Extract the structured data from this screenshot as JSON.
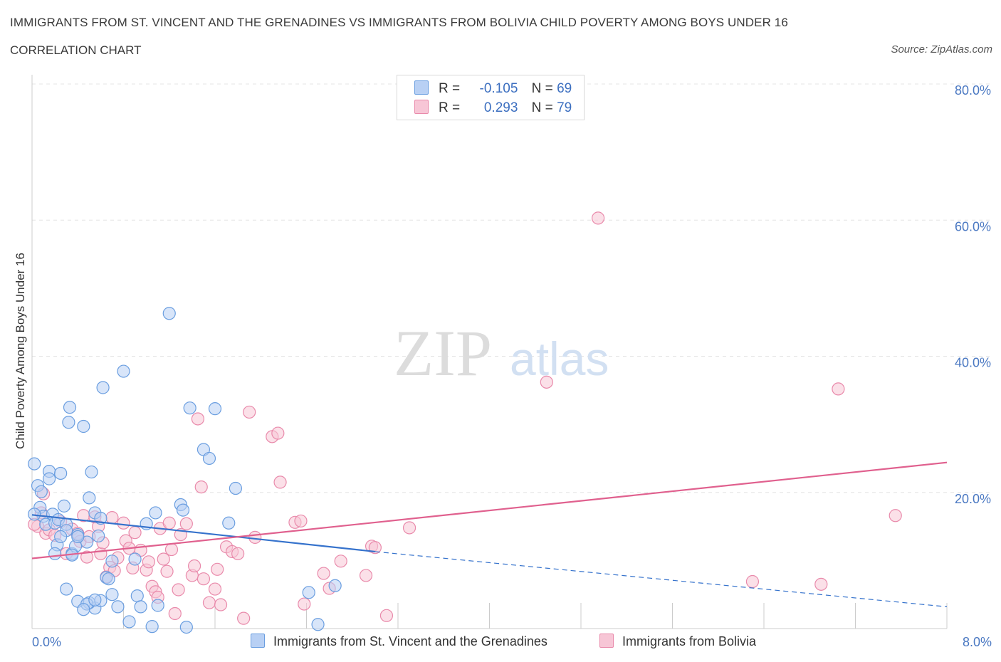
{
  "header": {
    "title": "IMMIGRANTS FROM ST. VINCENT AND THE GRENADINES VS IMMIGRANTS FROM BOLIVIA CHILD POVERTY AMONG BOYS UNDER 16",
    "subtitle": "CORRELATION CHART",
    "source": "Source: ZipAtlas.com"
  },
  "legend": {
    "rows": [
      {
        "r_label": "R =",
        "r_value": "-0.105",
        "n_label": "N =",
        "n_value": "69"
      },
      {
        "r_label": "R =",
        "r_value": "0.293",
        "n_label": "N =",
        "n_value": "79"
      }
    ]
  },
  "colors": {
    "blue_fill": "#b8d0f4",
    "blue_stroke": "#6a9ee0",
    "blue_line": "#3572cc",
    "pink_fill": "#f7c6d6",
    "pink_stroke": "#e98aab",
    "pink_line": "#e0608e",
    "accent_text": "#4a78c2"
  },
  "watermark": {
    "zip": "ZIP",
    "atlas": "atlas"
  },
  "chart_data": {
    "type": "scatter",
    "xlabel": "",
    "ylabel": "Child Poverty Among Boys Under 16",
    "xlim": [
      0,
      8
    ],
    "ylim": [
      0,
      80
    ],
    "x_tick_labels": [
      "0.0%",
      "8.0%"
    ],
    "y_ticks": [
      20,
      40,
      60,
      80
    ],
    "y_tick_labels": [
      "20.0%",
      "40.0%",
      "60.0%",
      "80.0%"
    ],
    "grid": true,
    "series": [
      {
        "name": "Immigrants from St. Vincent and the Grenadines",
        "color": "blue",
        "trend": {
          "x": [
            0.0,
            3.0
          ],
          "y": [
            16.7,
            11.3
          ]
        },
        "trend_extension": {
          "x": [
            3.0,
            8.0
          ],
          "y": [
            11.3,
            3.2
          ]
        },
        "points": [
          [
            0.02,
            24.2
          ],
          [
            0.05,
            21.0
          ],
          [
            0.07,
            17.8
          ],
          [
            0.08,
            20.1
          ],
          [
            0.1,
            16.5
          ],
          [
            0.12,
            15.3
          ],
          [
            0.15,
            23.1
          ],
          [
            0.15,
            22.0
          ],
          [
            0.18,
            16.8
          ],
          [
            0.2,
            15.5
          ],
          [
            0.22,
            12.3
          ],
          [
            0.23,
            16.0
          ],
          [
            0.25,
            22.8
          ],
          [
            0.28,
            18.0
          ],
          [
            0.3,
            15.3
          ],
          [
            0.33,
            32.5
          ],
          [
            0.32,
            30.3
          ],
          [
            0.35,
            11.0
          ],
          [
            0.38,
            12.1
          ],
          [
            0.4,
            13.8
          ],
          [
            0.45,
            29.7
          ],
          [
            0.48,
            12.7
          ],
          [
            0.5,
            19.2
          ],
          [
            0.52,
            23.0
          ],
          [
            0.55,
            17.0
          ],
          [
            0.58,
            13.6
          ],
          [
            0.6,
            16.2
          ],
          [
            0.62,
            35.4
          ],
          [
            0.65,
            7.5
          ],
          [
            0.67,
            7.3
          ],
          [
            0.7,
            9.9
          ],
          [
            0.75,
            3.2
          ],
          [
            0.8,
            37.8
          ],
          [
            0.85,
            1.0
          ],
          [
            0.9,
            10.2
          ],
          [
            0.92,
            4.8
          ],
          [
            0.95,
            3.2
          ],
          [
            1.0,
            15.4
          ],
          [
            1.05,
            0.3
          ],
          [
            1.08,
            17.0
          ],
          [
            1.1,
            3.4
          ],
          [
            1.2,
            46.3
          ],
          [
            1.3,
            18.2
          ],
          [
            1.32,
            17.4
          ],
          [
            1.35,
            0.2
          ],
          [
            1.38,
            32.4
          ],
          [
            1.5,
            26.3
          ],
          [
            1.55,
            25.0
          ],
          [
            1.6,
            32.3
          ],
          [
            1.72,
            15.5
          ],
          [
            1.78,
            20.6
          ],
          [
            2.42,
            5.3
          ],
          [
            2.5,
            0.6
          ],
          [
            2.65,
            6.3
          ],
          [
            0.4,
            4.0
          ],
          [
            0.55,
            3.0
          ],
          [
            0.5,
            3.8
          ],
          [
            0.48,
            3.6
          ],
          [
            0.3,
            5.8
          ],
          [
            0.45,
            2.8
          ],
          [
            0.6,
            4.1
          ],
          [
            0.55,
            4.2
          ],
          [
            0.7,
            5.0
          ],
          [
            0.2,
            11.0
          ],
          [
            0.3,
            14.4
          ],
          [
            0.4,
            13.5
          ],
          [
            0.25,
            13.5
          ],
          [
            0.35,
            10.8
          ],
          [
            0.02,
            16.8
          ]
        ]
      },
      {
        "name": "Immigrants from Bolivia",
        "color": "pink",
        "trend": {
          "x": [
            0.0,
            8.0
          ],
          "y": [
            10.3,
            24.4
          ]
        },
        "points": [
          [
            0.05,
            15.0
          ],
          [
            0.08,
            17.0
          ],
          [
            0.1,
            19.8
          ],
          [
            0.12,
            14.0
          ],
          [
            0.15,
            14.5
          ],
          [
            0.2,
            13.7
          ],
          [
            0.25,
            15.7
          ],
          [
            0.3,
            11.0
          ],
          [
            0.35,
            14.6
          ],
          [
            0.4,
            14.0
          ],
          [
            0.42,
            12.8
          ],
          [
            0.45,
            16.6
          ],
          [
            0.48,
            10.5
          ],
          [
            0.5,
            13.5
          ],
          [
            0.55,
            16.4
          ],
          [
            0.58,
            15.0
          ],
          [
            0.6,
            11.0
          ],
          [
            0.62,
            12.6
          ],
          [
            0.65,
            7.6
          ],
          [
            0.68,
            9.0
          ],
          [
            0.7,
            16.3
          ],
          [
            0.72,
            8.5
          ],
          [
            0.75,
            10.4
          ],
          [
            0.8,
            15.5
          ],
          [
            0.82,
            12.9
          ],
          [
            0.85,
            11.8
          ],
          [
            0.88,
            8.9
          ],
          [
            0.9,
            14.1
          ],
          [
            0.95,
            11.5
          ],
          [
            1.0,
            8.6
          ],
          [
            1.02,
            9.8
          ],
          [
            1.05,
            6.2
          ],
          [
            1.08,
            5.4
          ],
          [
            1.1,
            4.6
          ],
          [
            1.12,
            14.7
          ],
          [
            1.15,
            10.2
          ],
          [
            1.18,
            8.4
          ],
          [
            1.2,
            15.5
          ],
          [
            1.22,
            11.6
          ],
          [
            1.25,
            2.2
          ],
          [
            1.28,
            5.7
          ],
          [
            1.3,
            13.8
          ],
          [
            1.35,
            15.4
          ],
          [
            1.4,
            7.8
          ],
          [
            1.42,
            9.2
          ],
          [
            1.45,
            30.8
          ],
          [
            1.48,
            20.8
          ],
          [
            1.5,
            7.3
          ],
          [
            1.55,
            3.8
          ],
          [
            1.6,
            5.8
          ],
          [
            1.62,
            8.7
          ],
          [
            1.65,
            3.5
          ],
          [
            1.7,
            12.0
          ],
          [
            1.75,
            11.3
          ],
          [
            1.8,
            11.0
          ],
          [
            1.85,
            1.5
          ],
          [
            1.9,
            31.8
          ],
          [
            1.95,
            13.4
          ],
          [
            2.1,
            28.2
          ],
          [
            2.15,
            28.7
          ],
          [
            2.17,
            21.5
          ],
          [
            2.3,
            15.6
          ],
          [
            2.35,
            15.8
          ],
          [
            2.38,
            3.6
          ],
          [
            2.55,
            8.1
          ],
          [
            2.6,
            5.9
          ],
          [
            2.7,
            9.9
          ],
          [
            2.92,
            7.8
          ],
          [
            2.97,
            12.1
          ],
          [
            3.0,
            11.9
          ],
          [
            3.1,
            1.9
          ],
          [
            3.3,
            14.8
          ],
          [
            4.95,
            60.3
          ],
          [
            4.5,
            36.2
          ],
          [
            6.3,
            6.9
          ],
          [
            6.9,
            6.5
          ],
          [
            7.05,
            35.2
          ],
          [
            7.55,
            16.6
          ],
          [
            0.02,
            15.3
          ]
        ]
      }
    ]
  }
}
